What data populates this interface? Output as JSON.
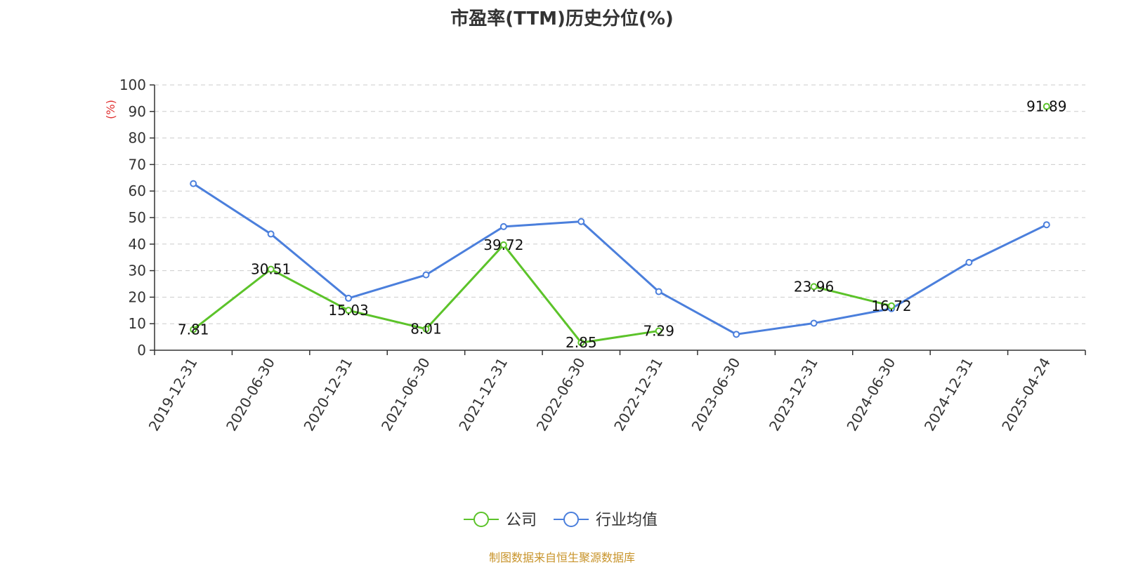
{
  "title": "市盈率(TTM)历史分位(%)",
  "source": "制图数据来自恒生聚源数据库",
  "chart_data": {
    "type": "line",
    "title": "市盈率(TTM)历史分位(%)",
    "ylabel": "(%)",
    "xlabel": "",
    "ylim": [
      0,
      100
    ],
    "yticks": [
      0,
      10,
      20,
      30,
      40,
      50,
      60,
      70,
      80,
      90,
      100
    ],
    "grid": true,
    "legend_position": "bottom-center",
    "categories": [
      "2019-12-31",
      "2020-06-30",
      "2020-12-31",
      "2021-06-30",
      "2021-12-31",
      "2022-06-30",
      "2022-12-31",
      "2023-06-30",
      "2023-12-31",
      "2024-06-30",
      "2024-12-31",
      "2025-04-24"
    ],
    "series": [
      {
        "name": "公司",
        "color": "#5cc32a",
        "values": [
          7.81,
          30.51,
          15.03,
          8.01,
          39.72,
          2.85,
          7.29,
          null,
          23.96,
          16.72,
          null,
          91.89
        ],
        "labels": [
          "7.81",
          "30.51",
          "15.03",
          "8.01",
          "39.72",
          "2.85",
          "7.29",
          "",
          "23.96",
          "16.72",
          "",
          "91.89"
        ]
      },
      {
        "name": "行业均值",
        "color": "#4b7fdc",
        "values": [
          62.8,
          43.8,
          19.6,
          28.4,
          46.6,
          48.5,
          22.1,
          6.0,
          10.2,
          15.7,
          33.1,
          47.3
        ]
      }
    ]
  }
}
